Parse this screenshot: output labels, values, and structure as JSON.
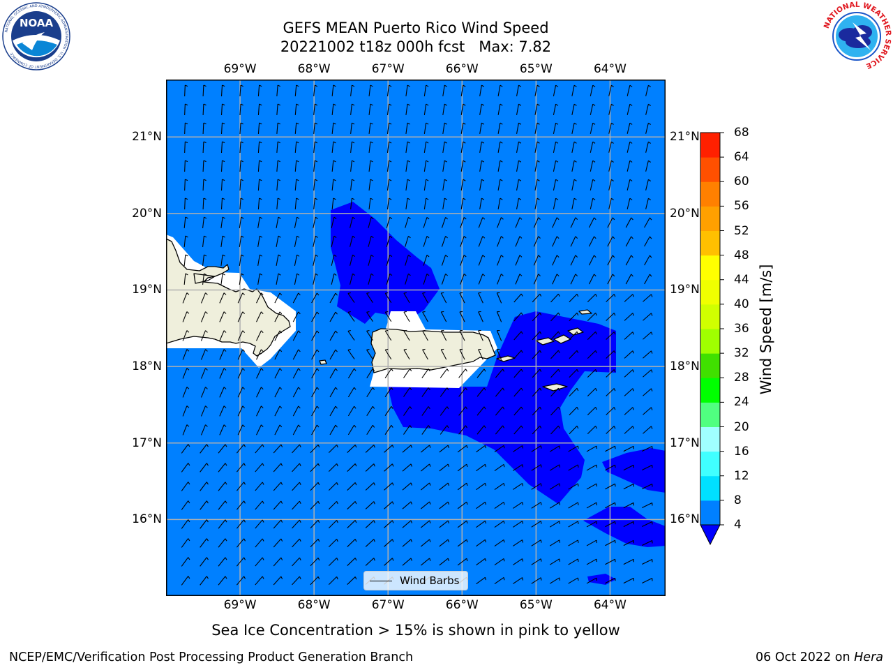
{
  "title": {
    "line1": "GEFS MEAN Puerto Rico Wind Speed",
    "line2": "20221002 t18z 000h fcst   Max: 7.82"
  },
  "axes": {
    "lon_ticks": [
      "69°W",
      "68°W",
      "67°W",
      "66°W",
      "65°W",
      "64°W"
    ],
    "lon_values": [
      -69,
      -68,
      -67,
      -66,
      -65,
      -64
    ],
    "lat_ticks": [
      "21°N",
      "20°N",
      "19°N",
      "18°N",
      "17°N",
      "16°N"
    ],
    "lat_values": [
      21,
      20,
      19,
      18,
      17,
      16
    ],
    "lon_range": [
      -70.0,
      -63.25
    ],
    "lat_range": [
      15.0,
      21.75
    ]
  },
  "colorbar": {
    "title": "Wind Speed [m/s]",
    "levels": [
      "4",
      "8",
      "12",
      "16",
      "20",
      "24",
      "28",
      "32",
      "36",
      "40",
      "44",
      "48",
      "52",
      "56",
      "60",
      "64",
      "68"
    ],
    "colors": [
      "#0080ff",
      "#00e0ff",
      "#40ffff",
      "#a0ffff",
      "#50ff80",
      "#00ff00",
      "#40e000",
      "#a0ff00",
      "#d0ff00",
      "#f0ff00",
      "#ffff00",
      "#ffc000",
      "#ffa000",
      "#ff8000",
      "#ff5000",
      "#ff2000"
    ],
    "under_color": "#0000ff"
  },
  "map_colors": {
    "ocean": "#0080ff",
    "low_wind": "#0000ff",
    "land": "#efefdc",
    "masked": "#ffffff",
    "grid": "#b0b0b0"
  },
  "legend": {
    "label": "Wind Barbs"
  },
  "footnote": "Sea Ice Concentration > 15% is shown in pink to yellow",
  "credits": {
    "left": "NCEP/EMC/Verification Post Processing Product Generation Branch",
    "date": "06 Oct 2022 on ",
    "machine": "Hera"
  },
  "logos": {
    "left": {
      "name": "noaa-logo",
      "text": "NOAA",
      "ring_text": "NATIONAL OCEANIC AND ATMOSPHERIC ADMINISTRATION · U.S. DEPARTMENT OF COMMERCE"
    },
    "right": {
      "name": "nws-logo",
      "ring_text": "NATIONAL WEATHER SERVICE"
    }
  }
}
